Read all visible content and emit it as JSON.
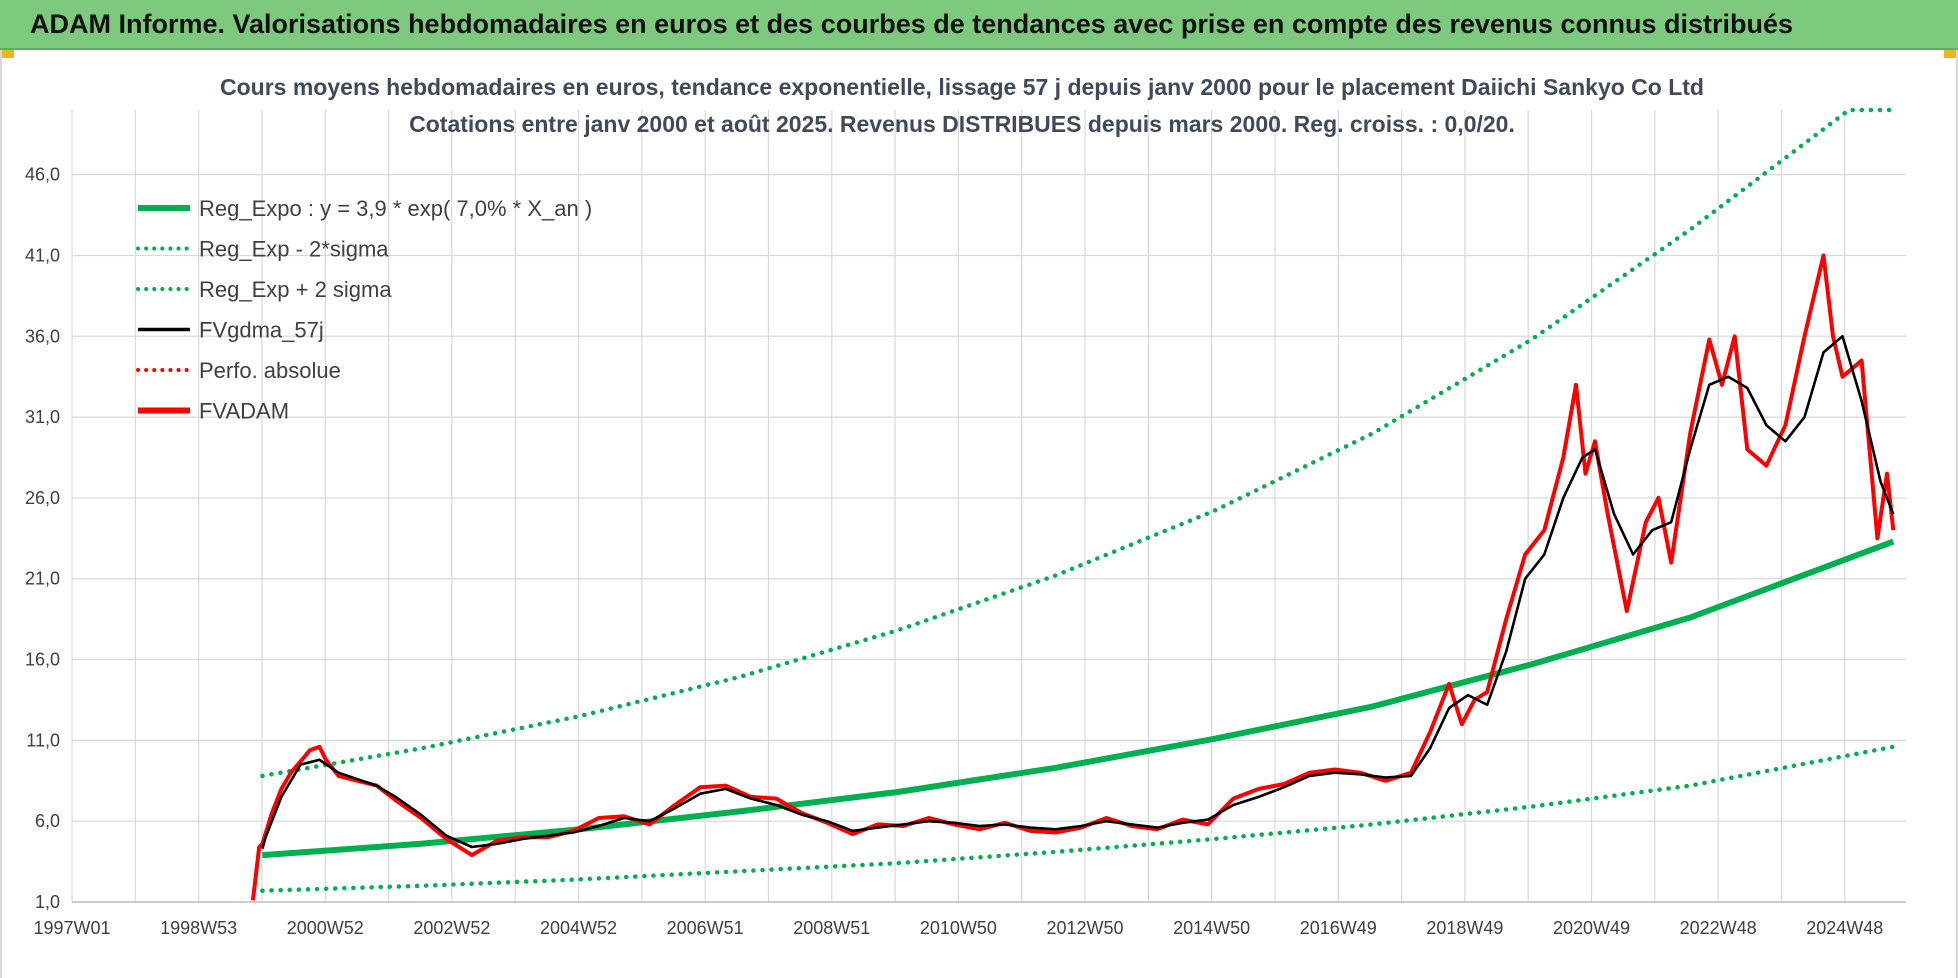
{
  "banner": {
    "title": "ADAM Informe. Valorisations hebdomadaires en euros et des courbes de tendances avec prise en compte des revenus connus distribués"
  },
  "chart_data": {
    "type": "line",
    "title": "Cours moyens hebdomadaires en euros, tendance exponentielle, lissage 57 j depuis janv 2000 pour le placement Daiichi Sankyo Co Ltd",
    "subtitle": "Cotations entre janv 2000 et août 2025.  Revenus DISTRIBUES depuis mars 2000. Reg. croiss. : 0,0/20.",
    "xlabel": "",
    "ylabel": "",
    "x_tick_labels": [
      "1997W01",
      "1998W53",
      "2000W52",
      "2002W52",
      "2004W52",
      "2006W51",
      "2008W51",
      "2010W50",
      "2012W50",
      "2014W50",
      "2016W49",
      "2018W49",
      "2020W49",
      "2022W48",
      "2024W48"
    ],
    "y_tick_labels": [
      "1,0",
      "6,0",
      "11,0",
      "16,0",
      "21,0",
      "26,0",
      "31,0",
      "36,0",
      "41,0",
      "46,0"
    ],
    "xlim": [
      1997.0,
      2025.9
    ],
    "ylim": [
      1,
      50
    ],
    "grid": true,
    "legend_position": "top-left",
    "colors": {
      "reg_expo": "#00b050",
      "sigma_bands": "#00b050",
      "fvgdma": "#000000",
      "perfo": "#ff0000",
      "fvadam": "#ff0000",
      "grid": "#d9d9d9",
      "title": "#404a5a"
    },
    "legend": [
      {
        "name": "Reg_Expo : y = 3,9 * exp( 7,0% *  X_an )",
        "style": "solid-thick",
        "color": "#00b050"
      },
      {
        "name": "Reg_Exp - 2*sigma",
        "style": "dotted",
        "color": "#00b050"
      },
      {
        "name": "Reg_Exp + 2 sigma",
        "style": "dotted",
        "color": "#00b050"
      },
      {
        "name": "FVgdma_57j",
        "style": "solid",
        "color": "#000000"
      },
      {
        "name": "Perfo. absolue",
        "style": "dotted",
        "color": "#ff0000"
      },
      {
        "name": "FVADAM",
        "style": "solid-thick",
        "color": "#ff0000"
      }
    ],
    "series": [
      {
        "name": "Reg_Expo : y = 3,9 * exp( 7,0% *  X_an )",
        "x": [
          2000.0,
          2002.5,
          2005.0,
          2007.5,
          2010.0,
          2012.5,
          2015.0,
          2017.5,
          2020.0,
          2022.5,
          2025.7
        ],
        "values": [
          3.9,
          4.6,
          5.5,
          6.6,
          7.8,
          9.3,
          11.1,
          13.1,
          15.7,
          18.6,
          23.3
        ]
      },
      {
        "name": "Reg_Exp - 2*sigma",
        "x": [
          2000.0,
          2002.5,
          2005.0,
          2007.5,
          2010.0,
          2012.5,
          2015.0,
          2017.5,
          2020.0,
          2022.5,
          2025.7
        ],
        "values": [
          1.7,
          2.0,
          2.4,
          2.9,
          3.4,
          4.1,
          4.9,
          5.8,
          6.9,
          8.2,
          10.6
        ]
      },
      {
        "name": "Reg_Exp + 2 sigma",
        "x": [
          2000.0,
          2002.5,
          2005.0,
          2007.5,
          2010.0,
          2012.5,
          2015.0,
          2017.5,
          2020.0,
          2022.5,
          2025.0,
          2025.7
        ],
        "values": [
          8.8,
          10.5,
          12.5,
          14.9,
          17.8,
          21.2,
          25.2,
          30.0,
          35.8,
          42.6,
          50.0,
          50.0
        ]
      },
      {
        "name": "FVgdma_57j",
        "x": [
          2000.0,
          2000.05,
          2000.3,
          2000.6,
          2000.9,
          2001.2,
          2001.5,
          2001.8,
          2002.1,
          2002.5,
          2002.9,
          2003.3,
          2003.7,
          2004.1,
          2004.5,
          2004.9,
          2005.3,
          2005.7,
          2006.1,
          2006.5,
          2006.9,
          2007.3,
          2007.7,
          2008.1,
          2008.5,
          2008.9,
          2009.3,
          2009.7,
          2010.1,
          2010.5,
          2010.9,
          2011.3,
          2011.7,
          2012.1,
          2012.5,
          2012.9,
          2013.3,
          2013.7,
          2014.1,
          2014.5,
          2014.9,
          2015.3,
          2015.7,
          2016.1,
          2016.5,
          2016.9,
          2017.3,
          2017.7,
          2018.1,
          2018.4,
          2018.7,
          2019.0,
          2019.3,
          2019.6,
          2019.9,
          2020.2,
          2020.5,
          2020.8,
          2021.0,
          2021.3,
          2021.6,
          2021.9,
          2022.2,
          2022.5,
          2022.8,
          2023.1,
          2023.4,
          2023.7,
          2024.0,
          2024.3,
          2024.6,
          2024.9,
          2025.2,
          2025.5,
          2025.7
        ],
        "values": [
          4.3,
          5.0,
          7.5,
          9.5,
          9.8,
          9.0,
          8.6,
          8.2,
          7.5,
          6.4,
          5.1,
          4.4,
          4.6,
          4.9,
          5.1,
          5.3,
          5.7,
          6.2,
          6.0,
          6.8,
          7.7,
          8.0,
          7.4,
          7.0,
          6.4,
          6.0,
          5.4,
          5.6,
          5.8,
          6.0,
          5.9,
          5.7,
          5.8,
          5.6,
          5.5,
          5.7,
          6.0,
          5.8,
          5.6,
          5.9,
          6.1,
          7.0,
          7.5,
          8.1,
          8.8,
          9.0,
          8.9,
          8.7,
          8.8,
          10.5,
          13.0,
          13.8,
          13.2,
          16.5,
          21.0,
          22.5,
          26.0,
          28.5,
          29.0,
          25.0,
          22.5,
          24.0,
          24.5,
          29.0,
          33.0,
          33.5,
          32.8,
          30.5,
          29.5,
          31.0,
          35.0,
          36.0,
          32.0,
          27.0,
          25.0
        ]
      },
      {
        "name": "FVADAM",
        "x": [
          1999.85,
          1999.95,
          2000.0,
          2000.15,
          2000.3,
          2000.45,
          2000.6,
          2000.75,
          2000.9,
          2001.0,
          2001.2,
          2001.5,
          2001.8,
          2002.1,
          2002.5,
          2002.9,
          2003.3,
          2003.7,
          2004.1,
          2004.5,
          2004.9,
          2005.3,
          2005.7,
          2006.1,
          2006.5,
          2006.9,
          2007.3,
          2007.7,
          2008.1,
          2008.5,
          2008.9,
          2009.3,
          2009.7,
          2010.1,
          2010.5,
          2010.9,
          2011.3,
          2011.7,
          2012.1,
          2012.5,
          2012.9,
          2013.3,
          2013.7,
          2014.1,
          2014.5,
          2014.9,
          2015.3,
          2015.7,
          2016.1,
          2016.5,
          2016.9,
          2017.3,
          2017.7,
          2018.1,
          2018.4,
          2018.7,
          2018.9,
          2019.1,
          2019.3,
          2019.6,
          2019.9,
          2020.2,
          2020.5,
          2020.7,
          2020.85,
          2021.0,
          2021.2,
          2021.5,
          2021.8,
          2022.0,
          2022.2,
          2022.5,
          2022.8,
          2023.0,
          2023.2,
          2023.4,
          2023.7,
          2024.0,
          2024.3,
          2024.6,
          2024.75,
          2024.9,
          2025.2,
          2025.45,
          2025.6,
          2025.7
        ],
        "values": [
          1.1,
          4.4,
          4.6,
          6.5,
          8.0,
          9.0,
          9.7,
          10.4,
          10.6,
          9.8,
          8.8,
          8.5,
          8.2,
          7.3,
          6.2,
          4.9,
          3.9,
          4.8,
          5.0,
          5.0,
          5.4,
          6.2,
          6.3,
          5.8,
          7.0,
          8.1,
          8.2,
          7.5,
          7.4,
          6.5,
          5.9,
          5.2,
          5.8,
          5.7,
          6.2,
          5.8,
          5.5,
          5.9,
          5.4,
          5.3,
          5.6,
          6.2,
          5.7,
          5.5,
          6.1,
          5.8,
          7.4,
          8.0,
          8.3,
          9.0,
          9.2,
          9.0,
          8.5,
          9.0,
          11.5,
          14.5,
          12.0,
          13.5,
          14.0,
          18.5,
          22.5,
          24.0,
          28.5,
          33.0,
          27.5,
          29.5,
          25.0,
          19.0,
          24.5,
          26.0,
          22.0,
          30.0,
          35.8,
          33.0,
          36.0,
          29.0,
          28.0,
          30.5,
          36.0,
          41.0,
          36.0,
          33.5,
          34.5,
          23.5,
          27.5,
          24.0
        ]
      }
    ]
  }
}
